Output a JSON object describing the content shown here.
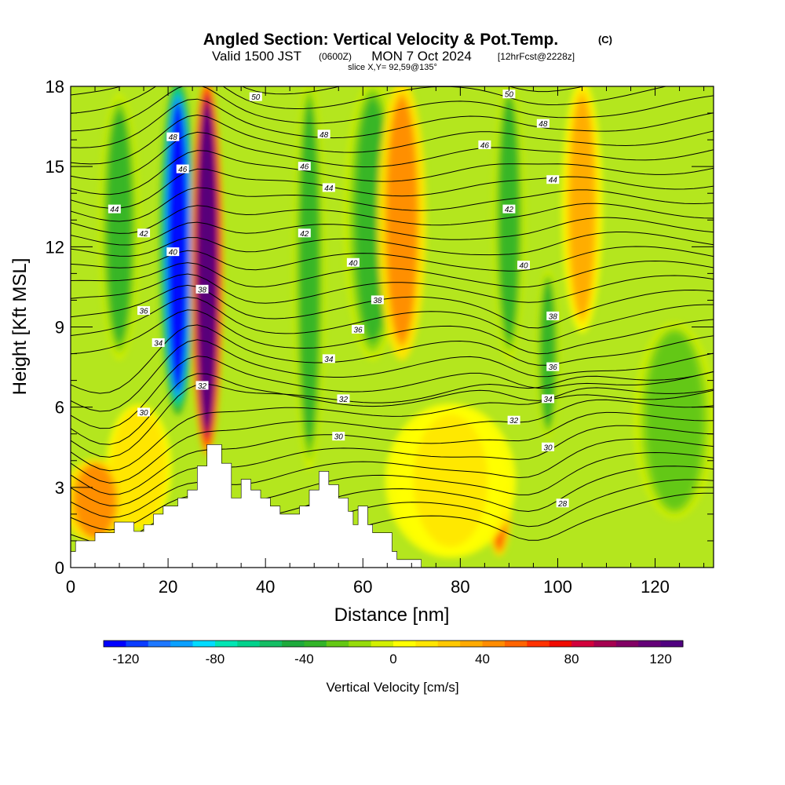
{
  "chart_data": {
    "type": "heatmap",
    "title": "Angled Section: Vertical Velocity & Pot.Temp.",
    "title_unit": "(C)",
    "subtitle_a": "Valid 1500 JST",
    "subtitle_b": "(0600Z)",
    "subtitle_c": "MON 7 Oct 2024",
    "subtitle_d": "[12hrFcst@2228z]",
    "subtitle_e": "slice X,Y= 92,59@135°",
    "xlabel": "Distance [nm]",
    "ylabel": "Height [Kft MSL]",
    "xlim": [
      0,
      132
    ],
    "ylim": [
      0,
      18
    ],
    "xticks": [
      "0",
      "20",
      "40",
      "60",
      "80",
      "100",
      "120"
    ],
    "yticks": [
      "0",
      "3",
      "6",
      "9",
      "12",
      "15",
      "18"
    ],
    "colorbar": {
      "label": "Vertical Velocity [cm/s]",
      "min": -130,
      "max": 130,
      "ticks": [
        "-120",
        "-80",
        "-40",
        "0",
        "40",
        "80",
        "120"
      ],
      "colors": [
        "#0000ff",
        "#0a3cff",
        "#1e78ff",
        "#0aa0ff",
        "#00dcff",
        "#00e6b4",
        "#00d28c",
        "#14be64",
        "#1eaa3c",
        "#32b428",
        "#64c814",
        "#96dc0a",
        "#d2f000",
        "#ffff00",
        "#ffe600",
        "#ffc800",
        "#ffaa00",
        "#ff8c00",
        "#ff6400",
        "#ff3200",
        "#f00a00",
        "#d2003c",
        "#a50050",
        "#820064",
        "#640078",
        "#500080"
      ]
    },
    "velocity_features": [
      {
        "x": 10,
        "bottom": 8,
        "top": 17.5,
        "w": -40,
        "width": 2.5
      },
      {
        "x": 22,
        "bottom": 6,
        "top": 18,
        "w": -125,
        "width": 2.2
      },
      {
        "x": 28,
        "bottom": 4.5,
        "top": 18,
        "w": 125,
        "width": 2.0
      },
      {
        "x": 14,
        "bottom": 1.5,
        "top": 6,
        "w": 20,
        "width": 4
      },
      {
        "x": 5,
        "bottom": 1,
        "top": 4,
        "w": 40,
        "width": 4
      },
      {
        "x": 49,
        "bottom": 4,
        "top": 18,
        "w": -40,
        "width": 2
      },
      {
        "x": 62,
        "bottom": 8,
        "top": 18,
        "w": -40,
        "width": 3.5
      },
      {
        "x": 68,
        "bottom": 8,
        "top": 18,
        "w": 40,
        "width": 3
      },
      {
        "x": 90,
        "bottom": 8,
        "top": 18,
        "w": -35,
        "width": 2
      },
      {
        "x": 88,
        "bottom": 0.5,
        "top": 4,
        "w": 50,
        "width": 1.5
      },
      {
        "x": 98,
        "bottom": 5,
        "top": 11,
        "w": -40,
        "width": 1.5
      },
      {
        "x": 105,
        "bottom": 9,
        "top": 18,
        "w": 35,
        "width": 2.5
      },
      {
        "x": 124,
        "bottom": 2,
        "top": 9,
        "w": -30,
        "width": 5
      },
      {
        "x": 78,
        "bottom": 0.5,
        "top": 6,
        "w": 10,
        "width": 8
      }
    ],
    "isentropes": [
      "28",
      "30",
      "32",
      "34",
      "36",
      "38",
      "40",
      "42",
      "44",
      "46",
      "48",
      "50"
    ],
    "contour_labels": [
      {
        "text": "50",
        "x": 38,
        "y": 17.6
      },
      {
        "text": "50",
        "x": 90,
        "y": 17.7
      },
      {
        "text": "48",
        "x": 21,
        "y": 16.1
      },
      {
        "text": "48",
        "x": 52,
        "y": 16.2
      },
      {
        "text": "48",
        "x": 97,
        "y": 16.6
      },
      {
        "text": "46",
        "x": 23,
        "y": 14.9
      },
      {
        "text": "46",
        "x": 48,
        "y": 15
      },
      {
        "text": "46",
        "x": 85,
        "y": 15.8
      },
      {
        "text": "44",
        "x": 9,
        "y": 13.4
      },
      {
        "text": "44",
        "x": 53,
        "y": 14.2
      },
      {
        "text": "44",
        "x": 99,
        "y": 14.5
      },
      {
        "text": "42",
        "x": 15,
        "y": 12.5
      },
      {
        "text": "42",
        "x": 48,
        "y": 12.5
      },
      {
        "text": "42",
        "x": 90,
        "y": 13.4
      },
      {
        "text": "40",
        "x": 21,
        "y": 11.8
      },
      {
        "text": "40",
        "x": 58,
        "y": 11.4
      },
      {
        "text": "40",
        "x": 93,
        "y": 11.3
      },
      {
        "text": "38",
        "x": 27,
        "y": 10.4
      },
      {
        "text": "38",
        "x": 63,
        "y": 10
      },
      {
        "text": "38",
        "x": 99,
        "y": 9.4
      },
      {
        "text": "36",
        "x": 15,
        "y": 9.6
      },
      {
        "text": "36",
        "x": 59,
        "y": 8.9
      },
      {
        "text": "36",
        "x": 99,
        "y": 7.5
      },
      {
        "text": "34",
        "x": 18,
        "y": 8.4
      },
      {
        "text": "34",
        "x": 53,
        "y": 7.8
      },
      {
        "text": "34",
        "x": 98,
        "y": 6.3
      },
      {
        "text": "32",
        "x": 27,
        "y": 6.8
      },
      {
        "text": "32",
        "x": 56,
        "y": 6.3
      },
      {
        "text": "32",
        "x": 91,
        "y": 5.5
      },
      {
        "text": "30",
        "x": 15,
        "y": 5.8
      },
      {
        "text": "30",
        "x": 55,
        "y": 4.9
      },
      {
        "text": "30",
        "x": 98,
        "y": 4.5
      },
      {
        "text": "28",
        "x": 101,
        "y": 2.4
      }
    ],
    "terrain": [
      [
        0,
        0.6
      ],
      [
        1,
        0.6
      ],
      [
        1,
        1
      ],
      [
        5,
        1
      ],
      [
        5,
        1.3
      ],
      [
        9,
        1.3
      ],
      [
        9,
        1.7
      ],
      [
        13,
        1.7
      ],
      [
        13,
        1.35
      ],
      [
        15,
        1.35
      ],
      [
        15,
        1.6
      ],
      [
        17,
        1.6
      ],
      [
        17,
        2
      ],
      [
        19,
        2
      ],
      [
        19,
        2.3
      ],
      [
        22,
        2.3
      ],
      [
        22,
        2.6
      ],
      [
        24,
        2.6
      ],
      [
        24,
        2.9
      ],
      [
        26,
        2.9
      ],
      [
        26,
        3.8
      ],
      [
        28,
        3.8
      ],
      [
        28,
        4.6
      ],
      [
        31,
        4.6
      ],
      [
        31,
        3.9
      ],
      [
        33,
        3.9
      ],
      [
        33,
        2.6
      ],
      [
        35,
        2.6
      ],
      [
        35,
        3.3
      ],
      [
        37,
        3.3
      ],
      [
        37,
        2.9
      ],
      [
        39,
        2.9
      ],
      [
        39,
        2.6
      ],
      [
        41,
        2.6
      ],
      [
        41,
        2.3
      ],
      [
        43,
        2.3
      ],
      [
        43,
        2
      ],
      [
        47,
        2
      ],
      [
        47,
        2.3
      ],
      [
        49,
        2.3
      ],
      [
        49,
        2.9
      ],
      [
        51,
        2.9
      ],
      [
        51,
        3.6
      ],
      [
        53,
        3.6
      ],
      [
        53,
        3.1
      ],
      [
        55,
        3.1
      ],
      [
        55,
        2.6
      ],
      [
        57,
        2.6
      ],
      [
        57,
        2.1
      ],
      [
        58,
        2.1
      ],
      [
        58,
        1.6
      ],
      [
        59,
        1.6
      ],
      [
        59,
        2.3
      ],
      [
        61,
        2.3
      ],
      [
        61,
        1.6
      ],
      [
        62,
        1.6
      ],
      [
        62,
        1.3
      ],
      [
        66,
        1.3
      ],
      [
        66,
        0.6
      ],
      [
        67,
        0.6
      ],
      [
        67,
        0.3
      ],
      [
        72,
        0.3
      ],
      [
        72,
        0
      ],
      [
        0,
        0
      ]
    ]
  }
}
